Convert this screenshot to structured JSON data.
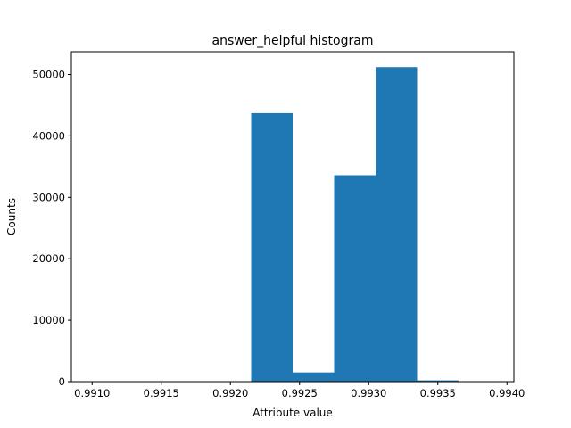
{
  "chart_data": {
    "type": "bar",
    "title": "answer_helpful histogram",
    "xlabel": "Attribute value",
    "ylabel": "Counts",
    "xlim": [
      0.99085,
      0.99405
    ],
    "ylim": [
      0,
      53700
    ],
    "x_ticks": [
      "0.9910",
      "0.9915",
      "0.9920",
      "0.9925",
      "0.9930",
      "0.9935",
      "0.9940"
    ],
    "x_tick_values": [
      0.991,
      0.9915,
      0.992,
      0.9925,
      0.993,
      0.9935,
      0.994
    ],
    "y_ticks": [
      "0",
      "10000",
      "20000",
      "30000",
      "40000",
      "50000"
    ],
    "y_tick_values": [
      0,
      10000,
      20000,
      30000,
      40000,
      50000
    ],
    "bin_edges": [
      0.99215,
      0.99245,
      0.99275,
      0.99305,
      0.99335,
      0.99365
    ],
    "values": [
      43700,
      1500,
      33600,
      51200,
      200
    ],
    "grid": false,
    "colors": {
      "bar": "#1f77b4",
      "axis": "#000000"
    }
  }
}
